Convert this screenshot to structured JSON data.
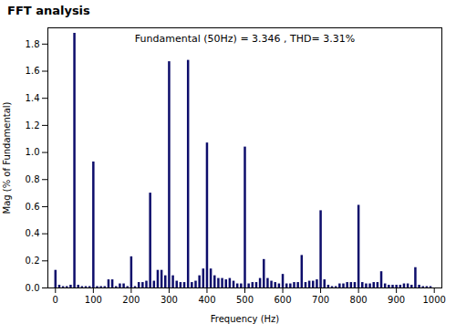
{
  "chart_data": {
    "type": "bar",
    "title": "FFT analysis",
    "annotation": "Fundamental (50Hz) = 3.346 , THD= 3.31%",
    "xlabel": "Frequency (Hz)",
    "ylabel": "Mag (% of Fundamental)",
    "color": "#0d0d6b",
    "grid": false,
    "xlim": [
      -20,
      1020
    ],
    "ylim": [
      0,
      1.92
    ],
    "xticks": [
      0,
      100,
      200,
      300,
      400,
      500,
      600,
      700,
      800,
      900,
      1000
    ],
    "yticks": [
      {
        "value": 0,
        "label": "0.0"
      },
      0.2,
      0.4,
      0.6,
      0.8,
      {
        "value": 1.0,
        "label": "1.0"
      },
      1.2,
      1.4,
      1.6,
      1.8
    ],
    "x": [
      0,
      10,
      20,
      30,
      40,
      50,
      60,
      70,
      80,
      90,
      100,
      110,
      120,
      130,
      140,
      150,
      160,
      170,
      180,
      190,
      200,
      210,
      220,
      230,
      240,
      250,
      260,
      270,
      280,
      290,
      300,
      310,
      320,
      330,
      340,
      350,
      360,
      370,
      380,
      390,
      400,
      410,
      420,
      430,
      440,
      450,
      460,
      470,
      480,
      490,
      500,
      510,
      520,
      530,
      540,
      550,
      560,
      570,
      580,
      590,
      600,
      610,
      620,
      630,
      640,
      650,
      660,
      670,
      680,
      690,
      700,
      710,
      720,
      730,
      740,
      750,
      760,
      770,
      780,
      790,
      800,
      810,
      820,
      830,
      840,
      850,
      860,
      870,
      880,
      890,
      900,
      910,
      920,
      930,
      940,
      950,
      960,
      970,
      980,
      990
    ],
    "values": [
      0.13,
      0.02,
      0.01,
      0.01,
      0.02,
      1.88,
      0.02,
      0.01,
      0.01,
      0.01,
      0.93,
      0.01,
      0.01,
      0.01,
      0.06,
      0.06,
      0.01,
      0.03,
      0.03,
      0.01,
      0.23,
      0.01,
      0.04,
      0.04,
      0.05,
      0.7,
      0.05,
      0.13,
      0.13,
      0.09,
      1.67,
      0.09,
      0.05,
      0.04,
      0.04,
      1.68,
      0.04,
      0.05,
      0.09,
      0.14,
      1.07,
      0.14,
      0.09,
      0.07,
      0.07,
      0.06,
      0.07,
      0.05,
      0.03,
      0.03,
      1.04,
      0.03,
      0.04,
      0.04,
      0.07,
      0.21,
      0.07,
      0.05,
      0.04,
      0.03,
      0.1,
      0.03,
      0.03,
      0.04,
      0.04,
      0.24,
      0.04,
      0.05,
      0.05,
      0.06,
      0.57,
      0.06,
      0.02,
      0.01,
      0.01,
      0.03,
      0.03,
      0.04,
      0.04,
      0.04,
      0.61,
      0.04,
      0.03,
      0.03,
      0.04,
      0.04,
      0.12,
      0.03,
      0.02,
      0.02,
      0.02,
      0.02,
      0.03,
      0.03,
      0.02,
      0.15,
      0.02,
      0.01,
      0.01,
      0.01
    ]
  }
}
